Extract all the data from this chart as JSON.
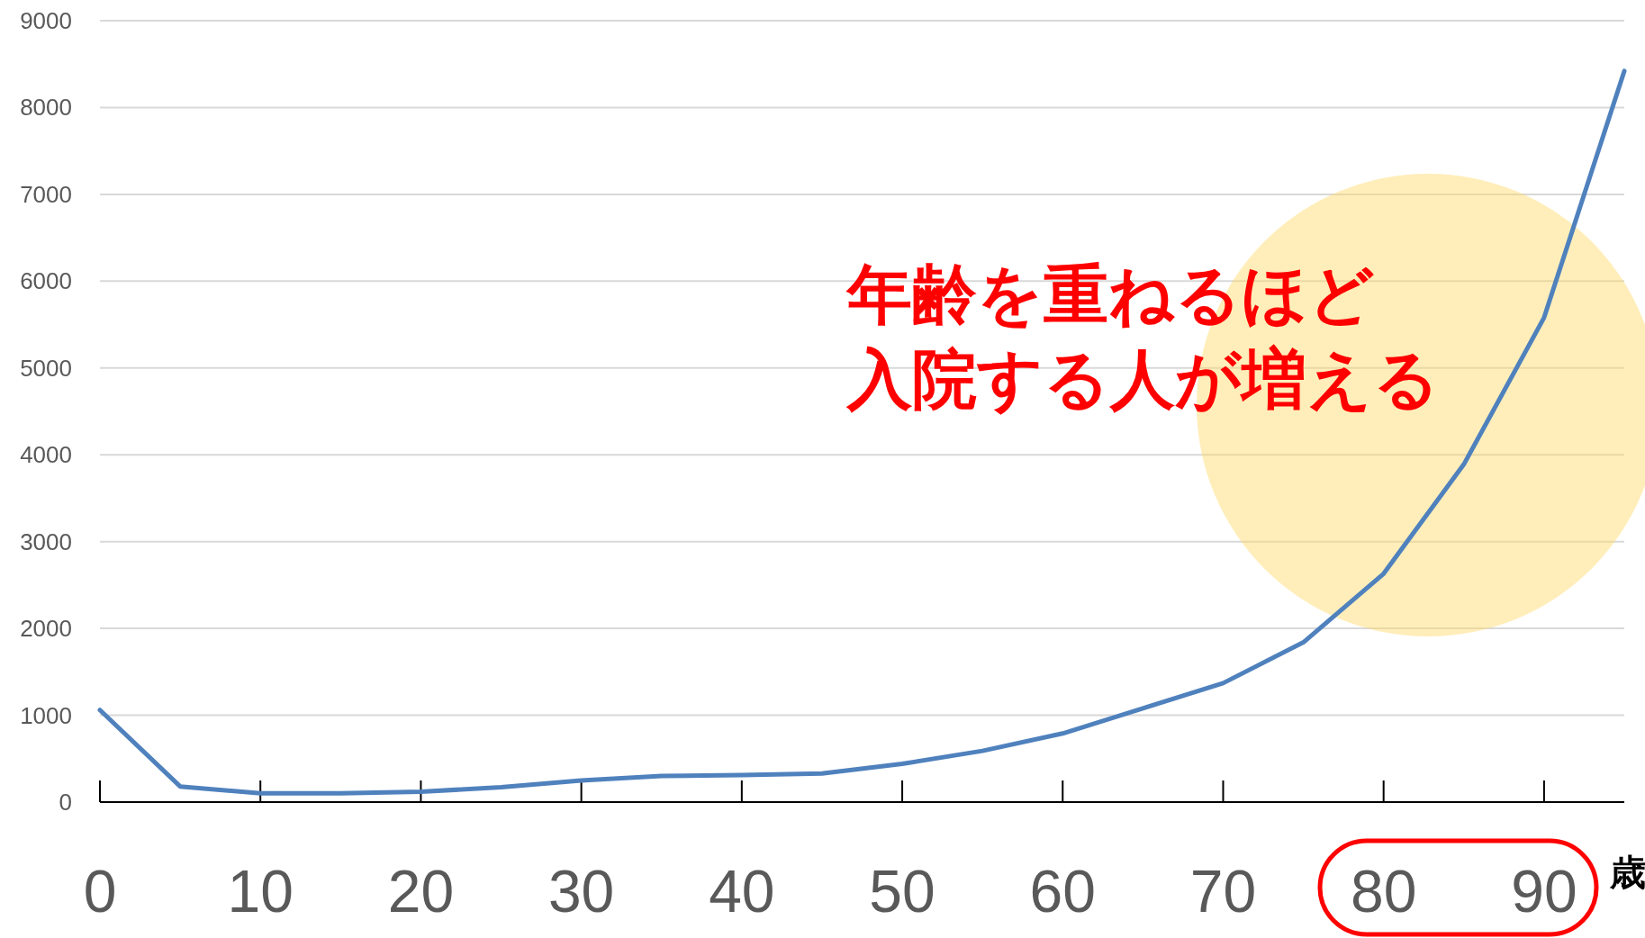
{
  "chart_data": {
    "type": "line",
    "xlabel": "歳",
    "x": [
      0,
      5,
      10,
      15,
      20,
      25,
      30,
      35,
      40,
      45,
      50,
      55,
      60,
      65,
      70,
      75,
      80,
      85,
      90,
      95
    ],
    "series": [
      {
        "color": "#4f81bd",
        "values": [
          1060,
          180,
          100,
          100,
          120,
          170,
          250,
          300,
          310,
          330,
          440,
          590,
          790,
          1080,
          1370,
          1840,
          2630,
          3890,
          5580,
          8420
        ]
      }
    ],
    "xlim": [
      0,
      95
    ],
    "xticks": [
      0,
      10,
      20,
      30,
      40,
      50,
      60,
      70,
      80,
      90
    ],
    "ylim": [
      0,
      9000
    ],
    "yticks": [
      0,
      1000,
      2000,
      3000,
      4000,
      5000,
      6000,
      7000,
      8000,
      9000
    ],
    "grid": "y",
    "marker": "none",
    "line_style": "solid",
    "annotations": [
      "年齢を重ねるほど",
      "入院する人が増える"
    ]
  }
}
